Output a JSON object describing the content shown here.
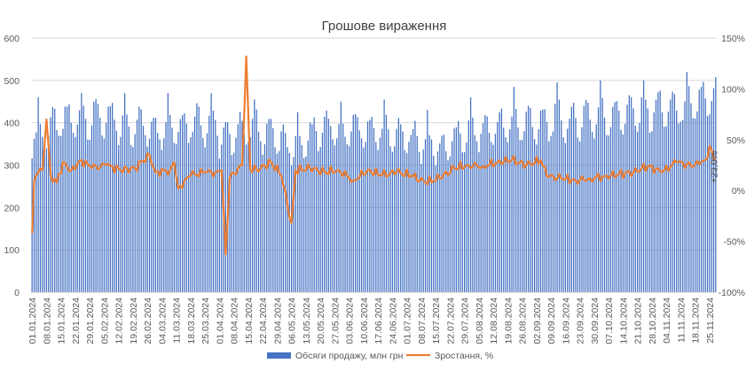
{
  "chart_data": {
    "type": "bar+line",
    "title": "Грошове вираження",
    "x_start": "2024-01-01",
    "x_end": "2024-11-28",
    "x_tick_labels": [
      "01.01.2024",
      "08.01.2024",
      "15.01.2024",
      "22.01.2024",
      "29.01.2024",
      "05.02.2024",
      "12.02.2024",
      "19.02.2024",
      "26.02.2024",
      "04.03.2024",
      "11.03.2024",
      "18.03.2024",
      "25.03.2024",
      "01.04.2024",
      "08.04.2024",
      "15.04.2024",
      "22.04.2024",
      "29.04.2024",
      "06.05.2024",
      "13.05.2024",
      "20.05.2024",
      "27.05.2024",
      "03.06.2024",
      "10.06.2024",
      "17.06.2024",
      "24.06.2024",
      "01.07.2024",
      "08.07.2024",
      "15.07.2024",
      "22.07.2024",
      "29.07.2024",
      "05.08.2024",
      "12.08.2024",
      "19.08.2024",
      "26.08.2024",
      "02.09.2024",
      "09.09.2024",
      "16.09.2024",
      "23.09.2024",
      "30.09.2024",
      "07.10.2024",
      "14.10.2024",
      "21.10.2024",
      "28.10.2024",
      "04.11.2024",
      "11.11.2024",
      "18.11.2024",
      "25.11.2024"
    ],
    "y_left": {
      "min": 0,
      "max": 600,
      "ticks": [
        "0",
        "100",
        "200",
        "300",
        "400",
        "500",
        "600"
      ]
    },
    "y_right": {
      "min": -100,
      "max": 150,
      "ticks": [
        "-100%",
        "-50%",
        "0%",
        "50%",
        "100%",
        "150%"
      ]
    },
    "grid": true,
    "legend_position": "bottom",
    "series": [
      {
        "name": "Обсяги продажу, млн грн",
        "kind": "bar",
        "axis": "left",
        "color": "#4472C4",
        "weekly_avg": [
          400,
          425,
          440,
          445,
          450,
          440,
          425,
          430,
          420,
          425,
          430,
          440,
          430,
          395,
          415,
          420,
          410,
          385,
          370,
          405,
          420,
          410,
          420,
          415,
          410,
          400,
          395,
          380,
          370,
          395,
          410,
          415,
          425,
          430,
          435,
          430,
          445,
          435,
          450,
          450,
          455,
          460,
          460,
          470,
          470,
          475,
          490,
          500
        ],
        "weekly_peak": [
          460,
          450,
          455,
          470,
          480,
          485,
          470,
          465,
          460,
          470,
          480,
          490,
          470,
          440,
          455,
          455,
          440,
          430,
          425,
          445,
          460,
          450,
          460,
          460,
          455,
          450,
          440,
          430,
          430,
          440,
          460,
          460,
          475,
          485,
          480,
          480,
          495,
          485,
          500,
          500,
          500,
          505,
          500,
          510,
          515,
          520,
          565,
          540
        ]
      },
      {
        "name": "Зростання, %",
        "kind": "line",
        "axis": "right",
        "color": "#ED7D31",
        "key_points": [
          [
            "2024-01-01",
            -42
          ],
          [
            "2024-01-02",
            10
          ],
          [
            "2024-01-04",
            18
          ],
          [
            "2024-01-06",
            20
          ],
          [
            "2024-01-08",
            70
          ],
          [
            "2024-01-10",
            15
          ],
          [
            "2024-01-13",
            8
          ],
          [
            "2024-01-16",
            28
          ],
          [
            "2024-01-20",
            20
          ],
          [
            "2024-01-25",
            30
          ],
          [
            "2024-01-30",
            22
          ],
          [
            "2024-02-06",
            25
          ],
          [
            "2024-02-13",
            20
          ],
          [
            "2024-02-20",
            22
          ],
          [
            "2024-02-27",
            35
          ],
          [
            "2024-03-01",
            18
          ],
          [
            "2024-03-08",
            20
          ],
          [
            "2024-03-10",
            28
          ],
          [
            "2024-03-12",
            2
          ],
          [
            "2024-03-18",
            15
          ],
          [
            "2024-03-25",
            18
          ],
          [
            "2024-03-30",
            18
          ],
          [
            "2024-04-02",
            20
          ],
          [
            "2024-04-04",
            -63
          ],
          [
            "2024-04-06",
            12
          ],
          [
            "2024-04-10",
            22
          ],
          [
            "2024-04-12",
            25
          ],
          [
            "2024-04-14",
            132
          ],
          [
            "2024-04-16",
            20
          ],
          [
            "2024-04-21",
            22
          ],
          [
            "2024-04-26",
            28
          ],
          [
            "2024-05-01",
            15
          ],
          [
            "2024-05-06",
            -32
          ],
          [
            "2024-05-08",
            20
          ],
          [
            "2024-05-15",
            22
          ],
          [
            "2024-05-22",
            18
          ],
          [
            "2024-05-29",
            20
          ],
          [
            "2024-06-05",
            10
          ],
          [
            "2024-06-12",
            20
          ],
          [
            "2024-06-19",
            15
          ],
          [
            "2024-06-26",
            18
          ],
          [
            "2024-07-03",
            15
          ],
          [
            "2024-07-10",
            8
          ],
          [
            "2024-07-17",
            12
          ],
          [
            "2024-07-24",
            22
          ],
          [
            "2024-07-31",
            25
          ],
          [
            "2024-08-07",
            24
          ],
          [
            "2024-08-14",
            28
          ],
          [
            "2024-08-21",
            30
          ],
          [
            "2024-08-28",
            25
          ],
          [
            "2024-09-04",
            30
          ],
          [
            "2024-09-07",
            14
          ],
          [
            "2024-09-14",
            12
          ],
          [
            "2024-09-21",
            10
          ],
          [
            "2024-09-28",
            12
          ],
          [
            "2024-10-05",
            14
          ],
          [
            "2024-10-12",
            16
          ],
          [
            "2024-10-19",
            18
          ],
          [
            "2024-10-26",
            24
          ],
          [
            "2024-11-02",
            18
          ],
          [
            "2024-11-09",
            28
          ],
          [
            "2024-11-16",
            24
          ],
          [
            "2024-11-20",
            26
          ],
          [
            "2024-11-23",
            30
          ],
          [
            "2024-11-25",
            44
          ],
          [
            "2024-11-27",
            32
          ]
        ]
      }
    ],
    "annotation": {
      "text": "+23,0%",
      "date": "2024-11-27",
      "value": 23
    }
  }
}
